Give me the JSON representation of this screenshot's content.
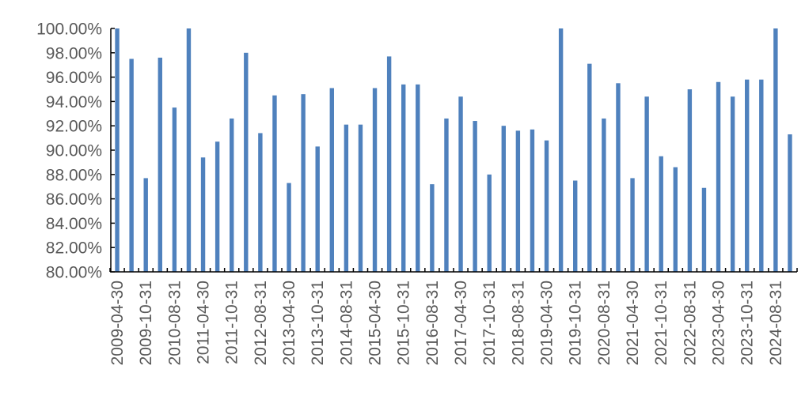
{
  "chart_data": {
    "type": "bar",
    "title": "",
    "xlabel": "",
    "ylabel": "",
    "ylim": [
      80,
      100
    ],
    "y_ticks": [
      "80.00%",
      "82.00%",
      "84.00%",
      "86.00%",
      "88.00%",
      "90.00%",
      "92.00%",
      "94.00%",
      "96.00%",
      "98.00%",
      "100.00%"
    ],
    "x_tick_labels": [
      "2009-04-30",
      "2009-10-31",
      "2010-08-31",
      "2011-04-30",
      "2011-10-31",
      "2012-08-31",
      "2013-04-30",
      "2013-10-31",
      "2014-08-31",
      "2015-04-30",
      "2015-10-31",
      "2016-08-31",
      "2017-04-30",
      "2017-10-31",
      "2018-08-31",
      "2019-04-30",
      "2019-10-31",
      "2020-08-31",
      "2021-04-30",
      "2021-10-31",
      "2022-08-31",
      "2023-04-30",
      "2023-10-31",
      "2024-08-31"
    ],
    "values": [
      100.0,
      97.5,
      87.7,
      97.6,
      93.5,
      100.0,
      89.4,
      90.7,
      92.6,
      98.0,
      91.4,
      94.5,
      87.3,
      94.6,
      90.3,
      95.1,
      92.1,
      92.1,
      95.1,
      97.7,
      95.4,
      95.4,
      87.2,
      92.6,
      94.4,
      92.4,
      88.0,
      92.0,
      91.6,
      91.7,
      90.8,
      100.0,
      87.5,
      97.1,
      92.6,
      95.5,
      87.7,
      94.4,
      89.5,
      88.6,
      95.0,
      86.9,
      95.6,
      94.4,
      95.8,
      95.8,
      100.0,
      91.3
    ],
    "bar_color": "#4F81BD",
    "grid": false,
    "legend": "none"
  }
}
